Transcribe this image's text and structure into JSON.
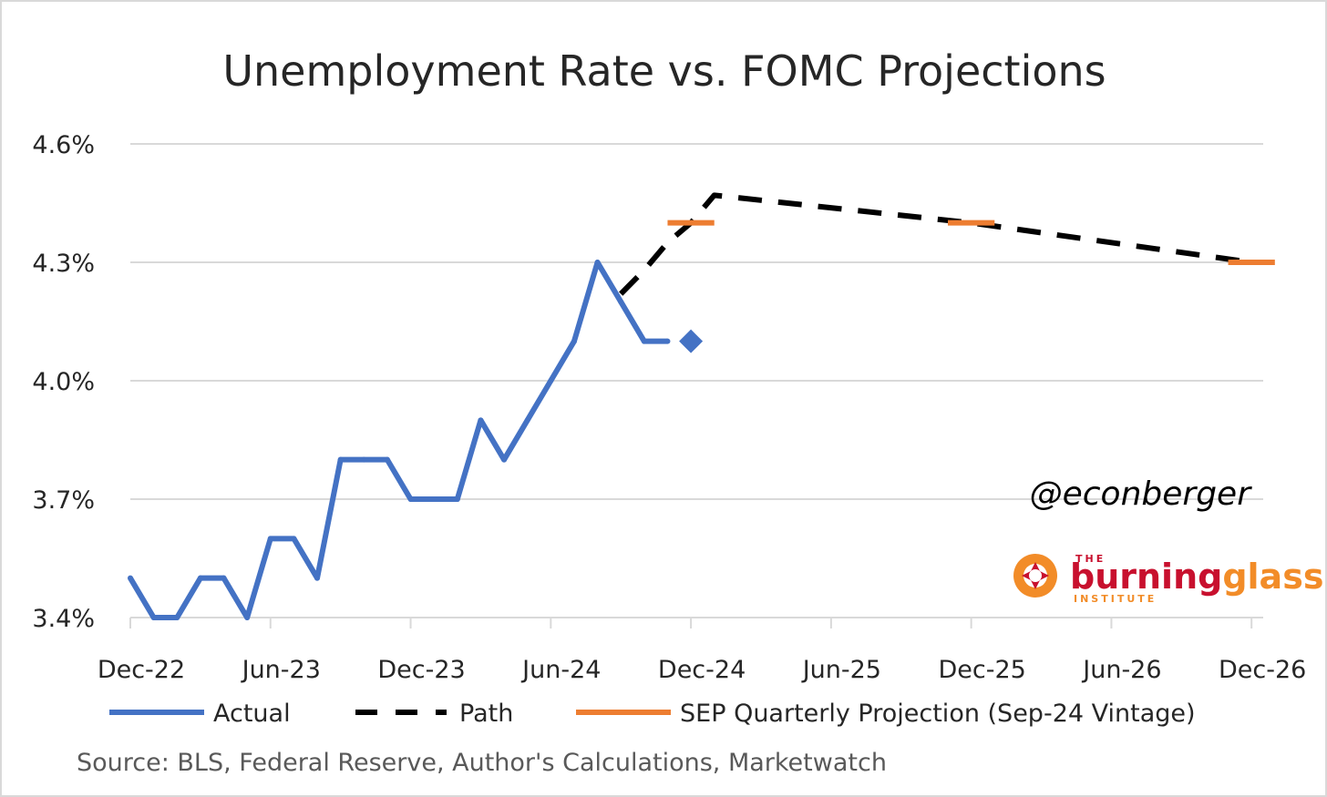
{
  "chart_data": {
    "type": "line",
    "title": "Unemployment Rate vs. FOMC Projections",
    "y_ticks": [
      "4.6%",
      "4.3%",
      "4.0%",
      "3.7%",
      "3.4%"
    ],
    "y_tick_values": [
      4.6,
      4.3,
      4.0,
      3.7,
      3.4
    ],
    "ylim": [
      3.4,
      4.6
    ],
    "x_ticks": [
      "Dec-22",
      "Jun-23",
      "Dec-23",
      "Jun-24",
      "Dec-24",
      "Jun-25",
      "Dec-25",
      "Jun-26",
      "Dec-26"
    ],
    "x_tick_months": [
      0,
      6,
      12,
      18,
      24,
      30,
      36,
      42,
      48
    ],
    "xlim_months": [
      0,
      48.5
    ],
    "grid": true,
    "legend_position": "bottom",
    "series": [
      {
        "name": "Actual",
        "style": "solid",
        "color": "#4472c4",
        "x_months": [
          0,
          1,
          2,
          3,
          4,
          5,
          6,
          7,
          8,
          9,
          10,
          11,
          12,
          13,
          14,
          15,
          16,
          17,
          18,
          19,
          20,
          21,
          22,
          23
        ],
        "values": [
          3.5,
          3.4,
          3.4,
          3.5,
          3.5,
          3.4,
          3.6,
          3.6,
          3.5,
          3.8,
          3.8,
          3.8,
          3.7,
          3.7,
          3.7,
          3.9,
          3.8,
          3.9,
          4.0,
          4.1,
          4.3,
          4.2,
          4.1,
          4.1
        ]
      },
      {
        "name": "Path",
        "style": "dashed",
        "color": "#000000",
        "x_months": [
          21,
          22,
          23,
          24,
          25,
          36,
          48
        ],
        "values": [
          4.22,
          4.28,
          4.35,
          4.4,
          4.47,
          4.4,
          4.3
        ]
      },
      {
        "name": "SEP Quarterly Projection (Sep-24 Vintage)",
        "style": "segments",
        "color": "#ed7d31",
        "segments": [
          {
            "x_months": [
              23,
              25
            ],
            "value": 4.4
          },
          {
            "x_months": [
              35,
              37
            ],
            "value": 4.4
          },
          {
            "x_months": [
              47,
              49
            ],
            "value": 4.3
          }
        ]
      }
    ],
    "markers": [
      {
        "name": "diamond",
        "x_months": 24,
        "value": 4.1,
        "color": "#4472c4"
      }
    ],
    "source": "Source: BLS, Federal Reserve, Author's Calculations, Marketwatch"
  },
  "watermark": {
    "handle": "@econberger",
    "logo_the": "THE",
    "logo_word1": "burning",
    "logo_word2": "glass",
    "logo_sub": "INSTITUTE",
    "logo_color1": "#c8102e",
    "logo_color2": "#f28c28"
  }
}
